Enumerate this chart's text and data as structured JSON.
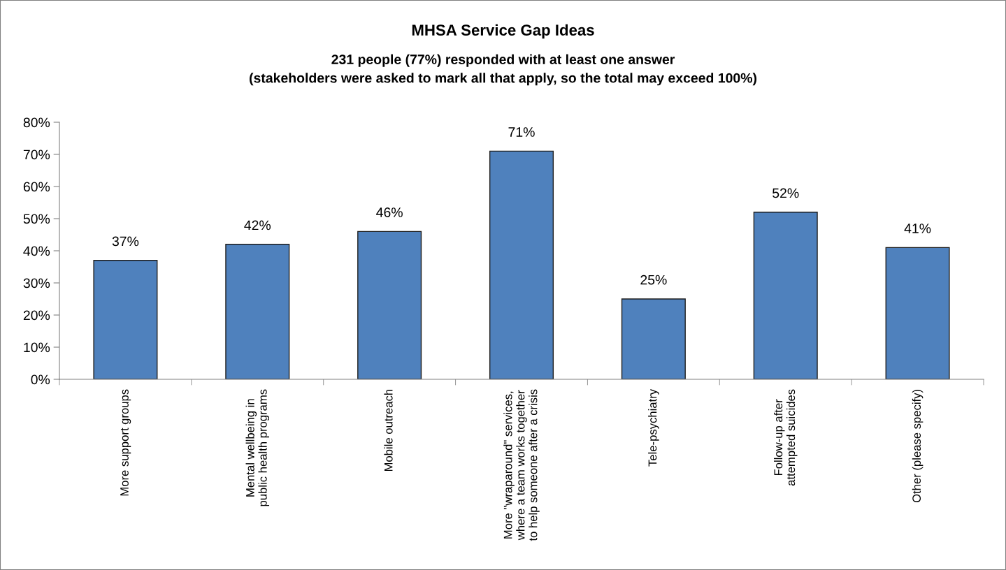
{
  "chart_data": {
    "type": "bar",
    "title": "MHSA Service Gap Ideas",
    "subtitle": "231 people (77%) responded with at least one answer\n(stakeholders were asked to mark all that apply, so the total may exceed 100%)",
    "categories": [
      "More support groups",
      "Mental wellbeing in\npublic health programs",
      "Mobile outreach",
      "More \"wraparound\" services,\nwhere a team works together\nto help someone after a crisis",
      "Tele-psychiatry",
      "Follow-up after\nattempted suicides",
      "Other (please specify)"
    ],
    "values": [
      37,
      42,
      46,
      71,
      25,
      52,
      41
    ],
    "value_labels": [
      "37%",
      "42%",
      "46%",
      "71%",
      "25%",
      "52%",
      "41%"
    ],
    "color": "#4f81bd",
    "ylim": [
      0,
      80
    ],
    "yticks": [
      {
        "value": 0,
        "label": "0%"
      },
      {
        "value": 10,
        "label": "10%"
      },
      {
        "value": 20,
        "label": "20%"
      },
      {
        "value": 30,
        "label": "30%"
      },
      {
        "value": 40,
        "label": "40%"
      },
      {
        "value": 50,
        "label": "50%"
      },
      {
        "value": 60,
        "label": "60%"
      },
      {
        "value": 70,
        "label": "70%"
      },
      {
        "value": 80,
        "label": "80%"
      }
    ],
    "grid": false,
    "legend": false
  }
}
